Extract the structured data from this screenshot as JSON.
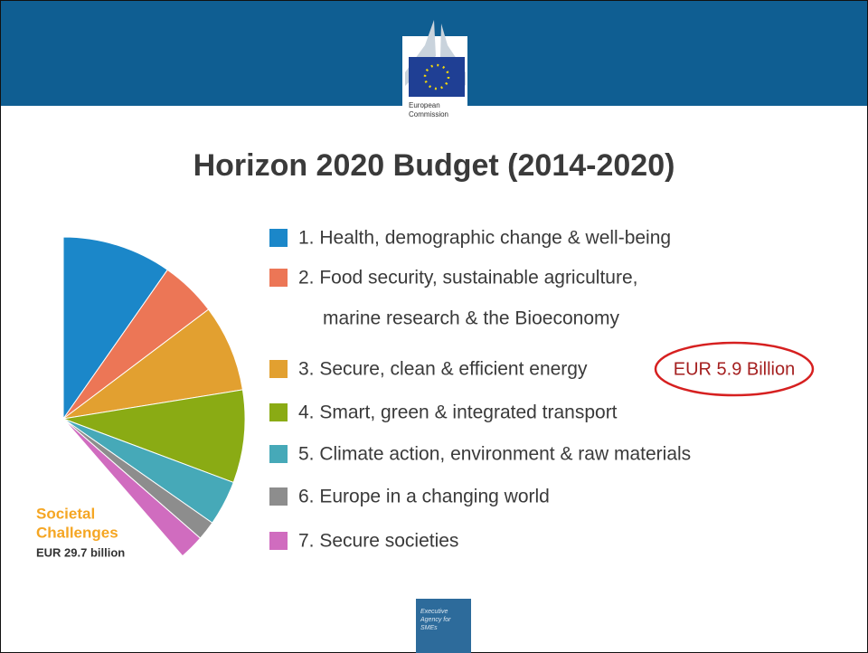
{
  "logo": [
    "European",
    "Commission"
  ],
  "agency": [
    "Executive",
    "Agency for",
    "SMEs"
  ],
  "chart_data": {
    "type": "pie",
    "title": "Horizon 2020 Budget (2014-2020)",
    "label": [
      "Societal",
      "Challenges",
      "EUR 29.7 billion"
    ],
    "annotation": "EUR 5.9 Billion",
    "categories": [
      "1. Health, demographic change & well-being",
      [
        "2. Food security, sustainable agriculture,",
        "marine research & the Bioeconomy"
      ],
      "3. Secure, clean & efficient energy",
      "4. Smart, green & integrated transport",
      "5. Climate action, environment & raw materials",
      "6. Europe in a changing world",
      "7. Secure societies"
    ],
    "values": [
      7.47,
      3.85,
      5.93,
      6.34,
      3.08,
      1.31,
      1.69
    ],
    "colors": [
      "#1b87c9",
      "#ec7656",
      "#e2a030",
      "#8aab14",
      "#46a9b8",
      "#8d8d8d",
      "#d06cbf"
    ]
  }
}
